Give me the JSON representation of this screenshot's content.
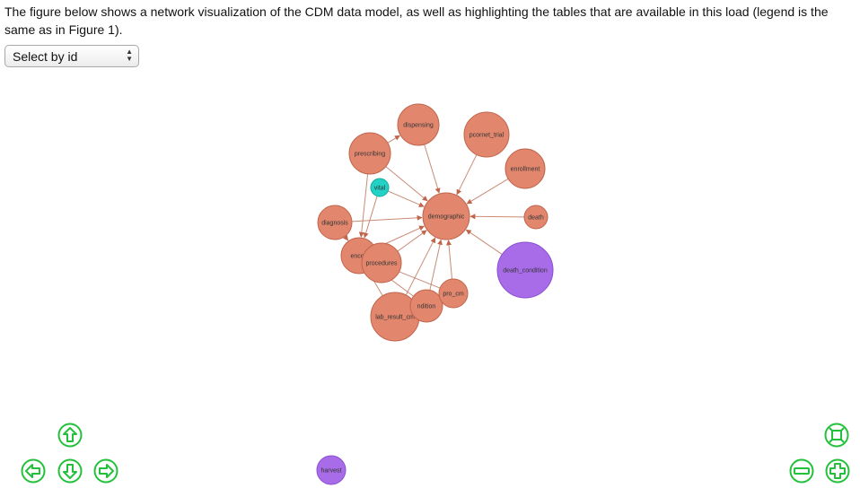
{
  "intro_text": "The figure below shows a network visualization of the CDM data model, as well as highlighting the tables that are available in this load (legend is the same as in Figure 1).",
  "select": {
    "value": "Select by id"
  },
  "colors": {
    "table": "#e2876e",
    "table_stroke": "#c0654c",
    "highlight": "#a86ce8",
    "highlight_stroke": "#8a4fd0",
    "vital": "#23d2c6",
    "edge": "#c98a76",
    "nav": "#23c13b"
  },
  "nodes": [
    {
      "id": "dispensing",
      "label": "dispensing"
    },
    {
      "id": "pcornet_trial",
      "label": "pcornet_trial"
    },
    {
      "id": "prescribing",
      "label": "prescribing"
    },
    {
      "id": "enrollment",
      "label": "enrollment"
    },
    {
      "id": "vital",
      "label": "vital"
    },
    {
      "id": "demographic",
      "label": "demographic"
    },
    {
      "id": "diagnosis",
      "label": "diagnosis"
    },
    {
      "id": "death",
      "label": "death"
    },
    {
      "id": "death_condition",
      "label": "death_condition"
    },
    {
      "id": "encounter",
      "label": "encou"
    },
    {
      "id": "procedures",
      "label": "procedures"
    },
    {
      "id": "pro_cm",
      "label": "pro_cm"
    },
    {
      "id": "condition",
      "label": "ndition"
    },
    {
      "id": "lab_result_cm",
      "label": "lab_result_cm"
    },
    {
      "id": "harvest",
      "label": "harvest"
    }
  ],
  "nav_buttons": {
    "up": "arrow-up-icon",
    "left": "arrow-left-icon",
    "down": "arrow-down-icon",
    "right": "arrow-right-icon",
    "fit": "zoom-extends-icon",
    "zoom_out": "zoom-out-icon",
    "zoom_in": "zoom-in-icon"
  }
}
